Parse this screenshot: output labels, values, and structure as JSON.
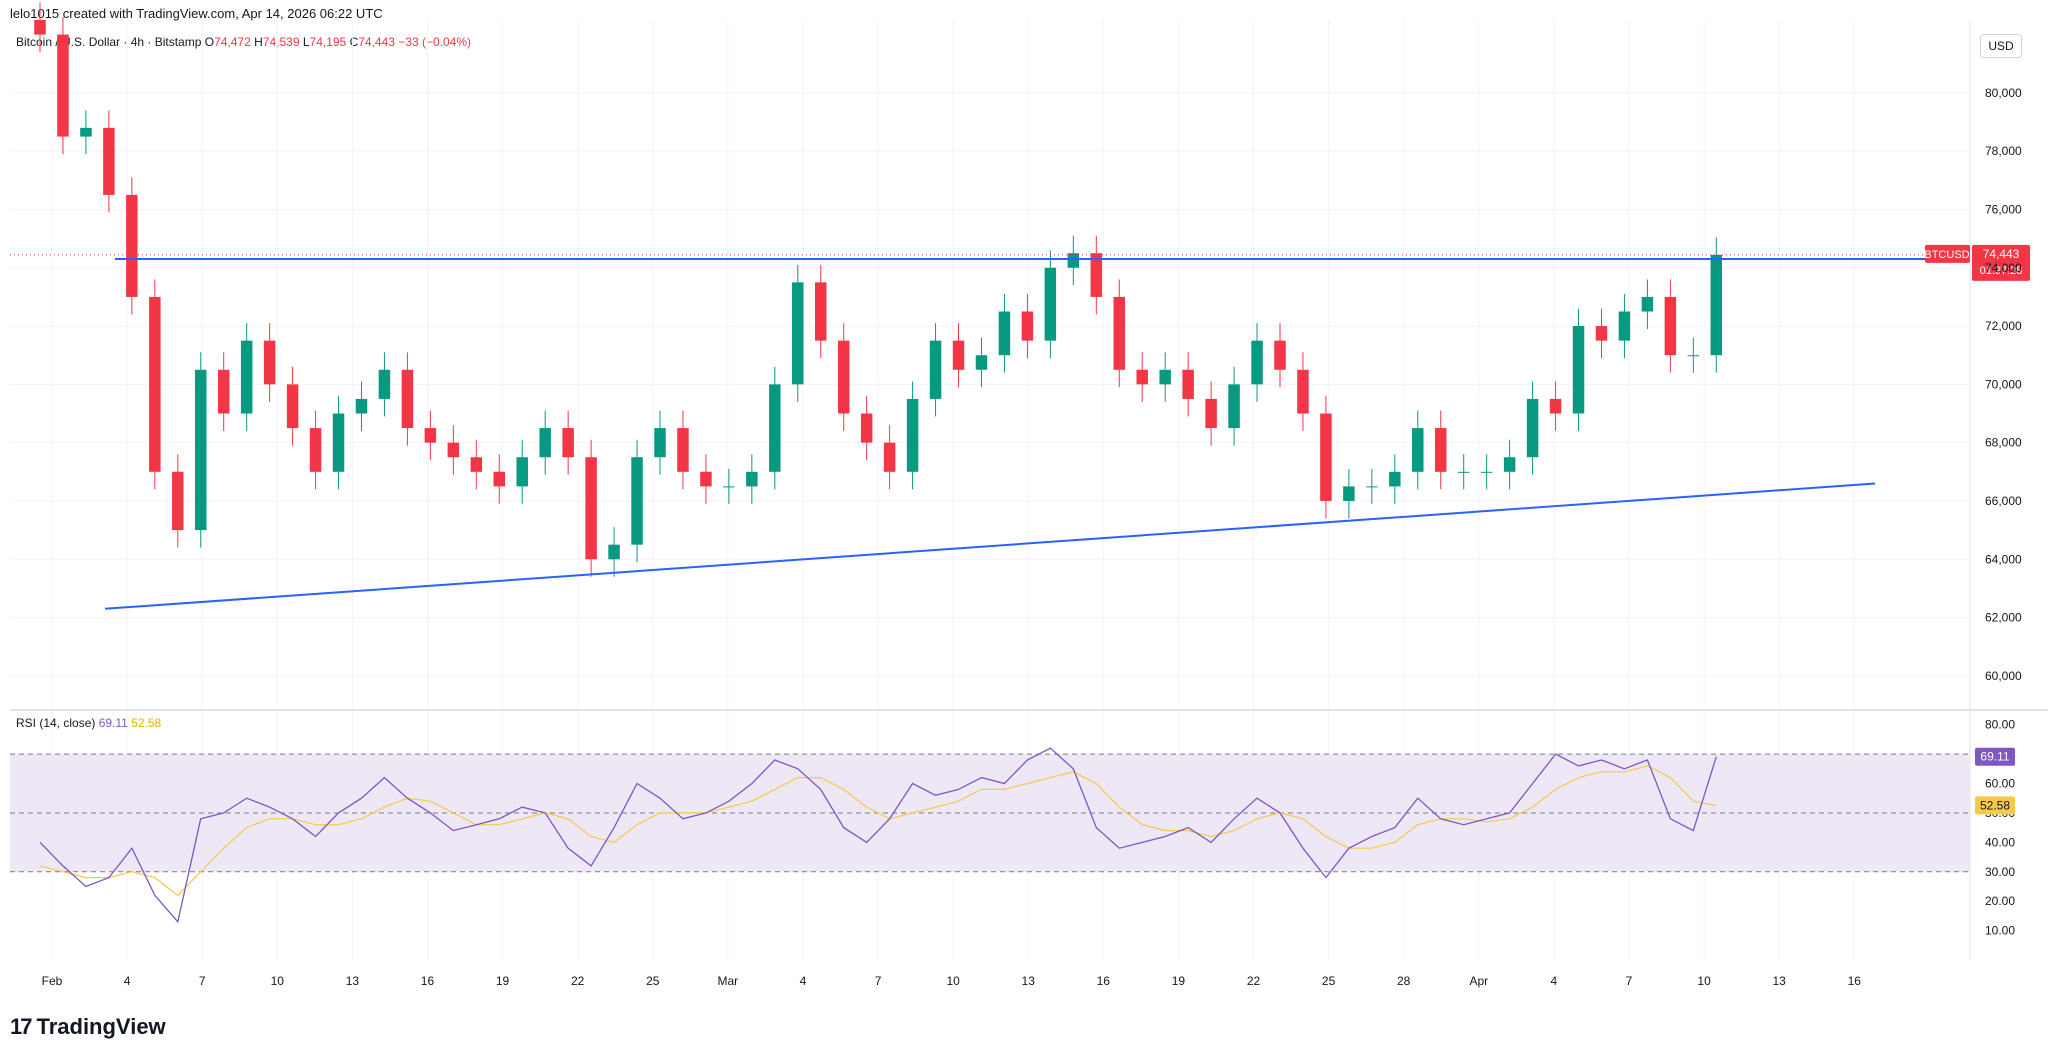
{
  "header": {
    "attribution": "lelo1015 created with TradingView.com, Apr 14, 2026 06:22 UTC"
  },
  "legend": {
    "symbol": "Bitcoin / U.S. Dollar · 4h · Bitstamp",
    "open_label": "O",
    "open": "74,472",
    "high_label": "H",
    "high": "74,539",
    "low_label": "L",
    "low": "74,195",
    "close_label": "C",
    "close": "74,443",
    "change": "−33 (−0.04%)"
  },
  "currency_button": "USD",
  "price_tag": {
    "symbol": "BTCUSD",
    "price": "74,443",
    "countdown": "01:37:28"
  },
  "rsi": {
    "label": "RSI (14, close)",
    "value": "69.11",
    "ma_value": "52.58"
  },
  "brand": {
    "name": "TradingView",
    "mark": "17"
  },
  "colors": {
    "up": "#089981",
    "down": "#f23645",
    "trendline": "#2962ff",
    "rsi_line": "#7e57c2",
    "rsi_ma": "#f7c948",
    "rsi_band": "#ede7f6",
    "grid": "#f0f3fa",
    "price_tag": "#f23645"
  },
  "chart_data": [
    {
      "type": "line",
      "chart": "candlestick (BTCUSD 4h)",
      "x": [
        "Jan 31",
        "Feb 1",
        "Feb 2",
        "Feb 3",
        "Feb 4",
        "Feb 5",
        "Feb 6",
        "Feb 7",
        "Feb 8",
        "Feb 9",
        "Feb 10",
        "Feb 11",
        "Feb 12",
        "Feb 13",
        "Feb 14",
        "Feb 15",
        "Feb 16",
        "Feb 17",
        "Feb 18",
        "Feb 19",
        "Feb 20",
        "Feb 21",
        "Feb 22",
        "Feb 23",
        "Feb 24",
        "Feb 25",
        "Feb 26",
        "Feb 27",
        "Feb 28",
        "Mar 1",
        "Mar 2",
        "Mar 3",
        "Mar 4",
        "Mar 5",
        "Mar 6",
        "Mar 7",
        "Mar 8",
        "Mar 9",
        "Mar 10",
        "Mar 11",
        "Mar 12",
        "Mar 13",
        "Mar 14",
        "Mar 15",
        "Mar 16",
        "Mar 17",
        "Mar 18",
        "Mar 19",
        "Mar 20",
        "Mar 21",
        "Mar 22",
        "Mar 23",
        "Mar 24",
        "Mar 25",
        "Mar 26",
        "Mar 27",
        "Mar 28",
        "Mar 29",
        "Mar 30",
        "Mar 31",
        "Apr 1",
        "Apr 2",
        "Apr 3",
        "Apr 4",
        "Apr 5",
        "Apr 6",
        "Apr 7",
        "Apr 8",
        "Apr 9",
        "Apr 10",
        "Apr 11",
        "Apr 12",
        "Apr 13",
        "Apr 14"
      ],
      "series": [
        {
          "name": "BTCUSD",
          "values": [
            82000,
            78500,
            78800,
            76500,
            73000,
            67000,
            65000,
            70500,
            69000,
            71500,
            70000,
            68500,
            67000,
            69000,
            69500,
            70500,
            68500,
            68000,
            67500,
            67000,
            66500,
            67500,
            68500,
            67500,
            64000,
            64500,
            67500,
            68500,
            67000,
            66500,
            66500,
            67000,
            70000,
            73500,
            71500,
            69000,
            68000,
            67000,
            69500,
            71500,
            70500,
            71000,
            72500,
            71500,
            74000,
            74500,
            73000,
            70500,
            70000,
            70500,
            69500,
            68500,
            70000,
            71500,
            70500,
            69000,
            66000,
            66500,
            66500,
            67000,
            68500,
            67000,
            67000,
            67000,
            67500,
            69500,
            69000,
            72000,
            71500,
            72500,
            73000,
            71000,
            71000,
            74443
          ]
        }
      ],
      "xlabel": "",
      "ylabel": "",
      "ylim": [
        59000,
        82500
      ],
      "y_ticks": [
        "80,000",
        "78,000",
        "76,000",
        "74,000",
        "72,000",
        "70,000",
        "68,000",
        "66,000",
        "64,000",
        "62,000",
        "60,000"
      ],
      "x_ticks": [
        "Feb",
        "4",
        "7",
        "10",
        "13",
        "16",
        "19",
        "22",
        "25",
        "Mar",
        "4",
        "7",
        "10",
        "13",
        "16",
        "19",
        "22",
        "25",
        "28",
        "Apr",
        "4",
        "7",
        "10",
        "13",
        "16"
      ],
      "annotations": {
        "resistance_level": 74300,
        "support_trendline": [
          {
            "x": "Jan 31",
            "y": 62300
          },
          {
            "x": "Apr 14",
            "y": 66600
          }
        ]
      },
      "grid": true
    },
    {
      "type": "line",
      "x": [
        "Jan 31",
        "Feb 1",
        "Feb 2",
        "Feb 3",
        "Feb 4",
        "Feb 5",
        "Feb 6",
        "Feb 7",
        "Feb 8",
        "Feb 9",
        "Feb 10",
        "Feb 11",
        "Feb 12",
        "Feb 13",
        "Feb 14",
        "Feb 15",
        "Feb 16",
        "Feb 17",
        "Feb 18",
        "Feb 19",
        "Feb 20",
        "Feb 21",
        "Feb 22",
        "Feb 23",
        "Feb 24",
        "Feb 25",
        "Feb 26",
        "Feb 27",
        "Feb 28",
        "Mar 1",
        "Mar 2",
        "Mar 3",
        "Mar 4",
        "Mar 5",
        "Mar 6",
        "Mar 7",
        "Mar 8",
        "Mar 9",
        "Mar 10",
        "Mar 11",
        "Mar 12",
        "Mar 13",
        "Mar 14",
        "Mar 15",
        "Mar 16",
        "Mar 17",
        "Mar 18",
        "Mar 19",
        "Mar 20",
        "Mar 21",
        "Mar 22",
        "Mar 23",
        "Mar 24",
        "Mar 25",
        "Mar 26",
        "Mar 27",
        "Mar 28",
        "Mar 29",
        "Mar 30",
        "Mar 31",
        "Apr 1",
        "Apr 2",
        "Apr 3",
        "Apr 4",
        "Apr 5",
        "Apr 6",
        "Apr 7",
        "Apr 8",
        "Apr 9",
        "Apr 10",
        "Apr 11",
        "Apr 12",
        "Apr 13",
        "Apr 14"
      ],
      "series": [
        {
          "name": "RSI (14, close)",
          "values": [
            40,
            32,
            25,
            28,
            38,
            22,
            13,
            48,
            50,
            55,
            52,
            48,
            42,
            50,
            55,
            62,
            55,
            50,
            44,
            46,
            48,
            52,
            50,
            38,
            32,
            45,
            60,
            55,
            48,
            50,
            54,
            60,
            68,
            65,
            58,
            45,
            40,
            48,
            60,
            56,
            58,
            62,
            60,
            68,
            72,
            65,
            45,
            38,
            40,
            42,
            45,
            40,
            48,
            55,
            50,
            38,
            28,
            38,
            42,
            45,
            55,
            48,
            46,
            48,
            50,
            60,
            70,
            66,
            68,
            65,
            68,
            48,
            44,
            69.11
          ]
        },
        {
          "name": "MA",
          "values": [
            32,
            30,
            28,
            28,
            30,
            28,
            22,
            30,
            38,
            45,
            48,
            48,
            46,
            46,
            48,
            52,
            55,
            54,
            50,
            46,
            46,
            48,
            50,
            48,
            42,
            40,
            46,
            50,
            50,
            50,
            52,
            54,
            58,
            62,
            62,
            58,
            52,
            48,
            50,
            52,
            54,
            58,
            58,
            60,
            62,
            64,
            60,
            52,
            46,
            44,
            44,
            42,
            44,
            48,
            50,
            48,
            42,
            38,
            38,
            40,
            46,
            48,
            48,
            47,
            48,
            52,
            58,
            62,
            64,
            64,
            66,
            62,
            54,
            52.58
          ]
        }
      ],
      "ylim": [
        0,
        85
      ],
      "y_ticks": [
        "80.00",
        "60.00",
        "50.00",
        "40.00",
        "30.00",
        "20.00",
        "10.00"
      ],
      "bands": [
        30,
        50,
        70
      ],
      "grid": true
    }
  ]
}
